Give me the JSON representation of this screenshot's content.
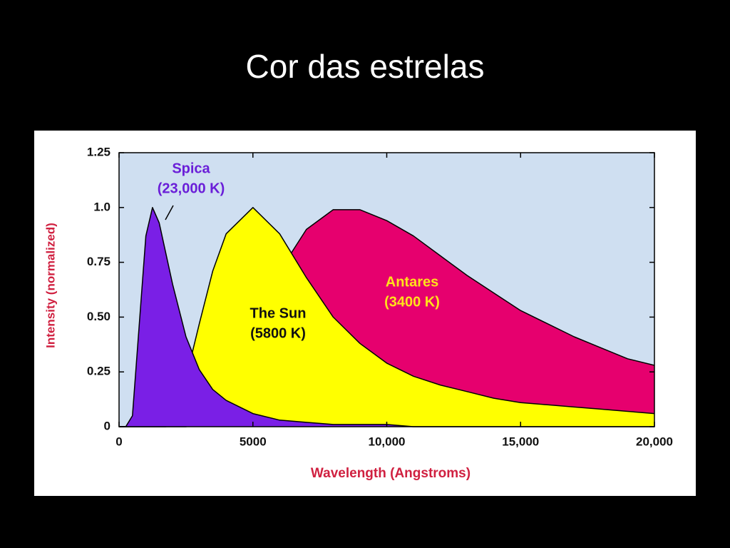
{
  "title": "Cor das estrelas",
  "chart_data": {
    "type": "area",
    "xlabel": "Wavelength (Angstroms)",
    "ylabel": "Intensity (normalized)",
    "x": [
      0,
      250,
      500,
      750,
      1000,
      1250,
      1500,
      1750,
      2000,
      2500,
      3000,
      3500,
      4000,
      5000,
      6000,
      7000,
      8000,
      9000,
      10000,
      11000,
      12000,
      13000,
      14000,
      15000,
      16000,
      17000,
      18000,
      19000,
      20000
    ],
    "series": [
      {
        "name": "Antares",
        "temperature": "(3400 K)",
        "color": "#e6006e",
        "label_color": "#ffe21a",
        "values": [
          0,
          0,
          0,
          0,
          0,
          0,
          0,
          0,
          0,
          0,
          0.02,
          0.07,
          0.16,
          0.43,
          0.71,
          0.9,
          0.99,
          0.99,
          0.94,
          0.87,
          0.78,
          0.69,
          0.61,
          0.53,
          0.47,
          0.41,
          0.36,
          0.31,
          0.28
        ]
      },
      {
        "name": "The Sun",
        "temperature": "(5800 K)",
        "color": "#ffff00",
        "label_color": "#111111",
        "values": [
          0,
          0,
          0,
          0,
          0,
          0,
          0,
          0,
          0.06,
          0.22,
          0.47,
          0.71,
          0.88,
          1,
          0.88,
          0.68,
          0.5,
          0.38,
          0.29,
          0.23,
          0.19,
          0.16,
          0.13,
          0.11,
          0.1,
          0.09,
          0.08,
          0.07,
          0.06
        ]
      },
      {
        "name": "Spica",
        "temperature": "(23,000 K)",
        "color": "#7a1fe6",
        "label_color": "#6a1ed8",
        "values": [
          0,
          0,
          0.05,
          0.46,
          0.87,
          1,
          0.93,
          0.79,
          0.65,
          0.41,
          0.26,
          0.17,
          0.12,
          0.06,
          0.03,
          0.02,
          0.01,
          0.01,
          0.01,
          0,
          0,
          0,
          0,
          0,
          0,
          0,
          0,
          0,
          0
        ]
      }
    ],
    "xlim": [
      0,
      20000
    ],
    "xticks": [
      0,
      5000,
      {
        "value": 10000,
        "label": "10,000"
      },
      {
        "value": 15000,
        "label": "15,000"
      },
      {
        "value": 20000,
        "label": "20,000"
      }
    ],
    "ylim": [
      0,
      1.25
    ],
    "yticks": [
      0,
      0.25,
      {
        "value": 0.5,
        "label": "0.50"
      },
      0.75,
      {
        "value": 1,
        "label": "1.0"
      },
      1.25
    ]
  }
}
